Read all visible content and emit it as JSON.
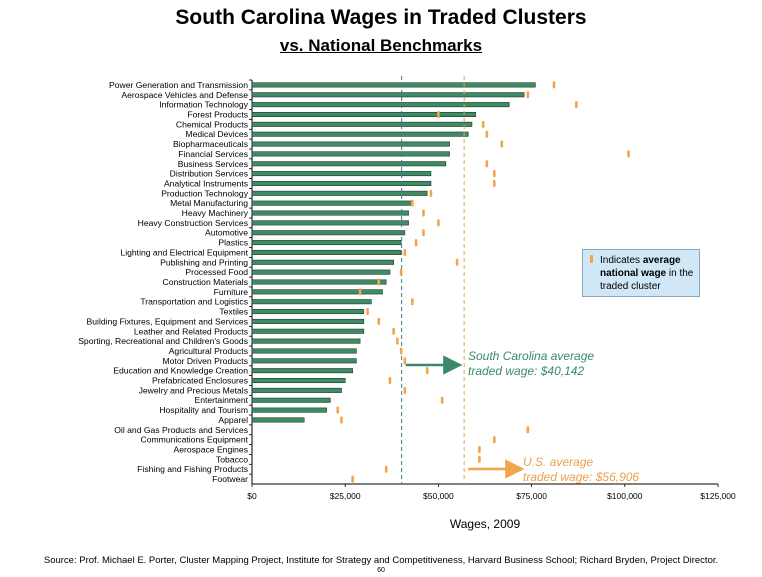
{
  "page": {
    "title": "South Carolina Wages in Traded Clusters",
    "subtitle": "vs. National Benchmarks",
    "source": "Source: Prof. Michael E. Porter, Cluster Mapping Project, Institute for Strategy and Competitiveness, Harvard Business School; Richard Bryden, Project Director.",
    "page_number": "60"
  },
  "legend": {
    "text_pre": "Indicates ",
    "text_bold": "average national wage",
    "text_post": " in the traded cluster"
  },
  "annotations": {
    "sc_line1": "South Carolina average",
    "sc_line2": "traded wage: $40,142",
    "us_line1": "U.S. average",
    "us_line2": "traded wage: $56,906"
  },
  "colors": {
    "bar_fill": "#3f8c64",
    "bar_stroke": "#1c3a2a",
    "national_marker": "#f2a54a",
    "sc_line": "#3a7c8e",
    "us_line": "#e8a04c",
    "sc_arrow": "#3a8a6a",
    "us_arrow": "#f2a54a"
  },
  "chart_data": {
    "type": "bar",
    "orientation": "horizontal",
    "xlabel": "Wages, 2009",
    "ylabel": "",
    "xlim": [
      0,
      125000
    ],
    "x_ticks": [
      0,
      25000,
      50000,
      75000,
      100000,
      125000
    ],
    "x_tick_labels": [
      "$0",
      "$25,000",
      "$50,000",
      "$75,000",
      "$100,000",
      "$125,000"
    ],
    "reference_lines": [
      {
        "label": "South Carolina average traded wage: $40,142",
        "value": 40142
      },
      {
        "label": "U.S. average traded wage: $56,906",
        "value": 56906
      }
    ],
    "categories": [
      "Power Generation and Transmission",
      "Aerospace Vehicles and Defense",
      "Information Technology",
      "Forest Products",
      "Chemical Products",
      "Medical Devices",
      "Biopharmaceuticals",
      "Financial Services",
      "Business Services",
      "Distribution Services",
      "Analytical Instruments",
      "Production Technology",
      "Metal Manufacturing",
      "Heavy Machinery",
      "Heavy Construction Services",
      "Automotive",
      "Plastics",
      "Lighting and Electrical Equipment",
      "Publishing and Printing",
      "Processed Food",
      "Construction Materials",
      "Furniture",
      "Transportation and Logistics",
      "Textiles",
      "Building Fixtures, Equipment and Services",
      "Leather and Related Products",
      "Sporting, Recreational and Children's Goods",
      "Agricultural Products",
      "Motor Driven Products",
      "Education and Knowledge Creation",
      "Prefabricated Enclosures",
      "Jewelry and Precious Metals",
      "Entertainment",
      "Hospitality and Tourism",
      "Apparel",
      "Oil and Gas Products and Services",
      "Communications Equipment",
      "Aerospace Engines",
      "Tobacco",
      "Fishing and Fishing Products",
      "Footwear"
    ],
    "series": [
      {
        "name": "South Carolina",
        "values": [
          76000,
          73000,
          69000,
          60000,
          59000,
          58000,
          53000,
          53000,
          52000,
          48000,
          48000,
          47000,
          43000,
          42000,
          42000,
          41000,
          40000,
          40000,
          38000,
          37000,
          36000,
          35000,
          32000,
          30000,
          30000,
          30000,
          29000,
          28000,
          28000,
          27000,
          25000,
          24000,
          21000,
          20000,
          14000,
          null,
          null,
          null,
          null,
          null,
          null
        ]
      },
      {
        "name": "average national wage",
        "values": [
          81000,
          74000,
          87000,
          50000,
          62000,
          63000,
          67000,
          101000,
          63000,
          65000,
          65000,
          48000,
          43000,
          46000,
          50000,
          46000,
          44000,
          41000,
          55000,
          40000,
          34000,
          29000,
          43000,
          31000,
          34000,
          38000,
          39000,
          40000,
          41000,
          47000,
          37000,
          41000,
          51000,
          23000,
          24000,
          74000,
          65000,
          61000,
          61000,
          36000,
          27000
        ]
      }
    ]
  }
}
